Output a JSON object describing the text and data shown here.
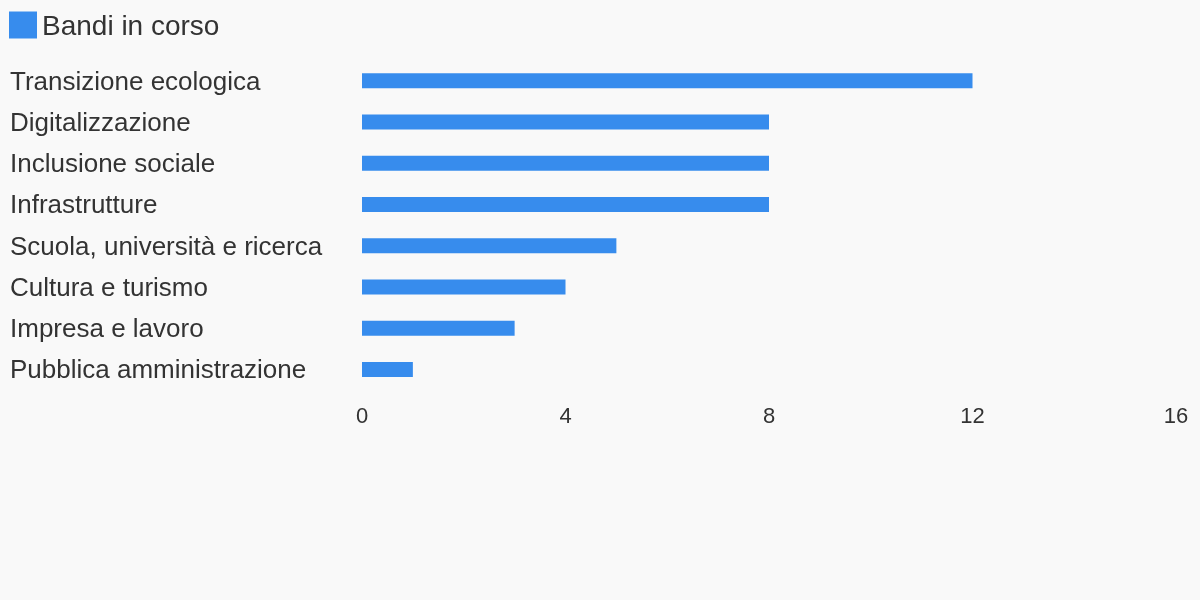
{
  "chart_data": {
    "type": "bar",
    "orientation": "horizontal",
    "categories": [
      "Transizione ecologica",
      "Digitalizzazione",
      "Inclusione sociale",
      "Infrastrutture",
      "Scuola, università e ricerca",
      "Cultura e turismo",
      "Impresa e lavoro",
      "Pubblica amministrazione"
    ],
    "series": [
      {
        "name": "Bandi in corso",
        "color": "#378ced",
        "values": [
          12,
          8,
          8,
          8,
          5,
          4,
          3,
          1
        ]
      }
    ],
    "xlim": [
      0,
      16
    ],
    "xticks": [
      0,
      4,
      8,
      12,
      16
    ],
    "grid": false,
    "legend": "top left"
  }
}
